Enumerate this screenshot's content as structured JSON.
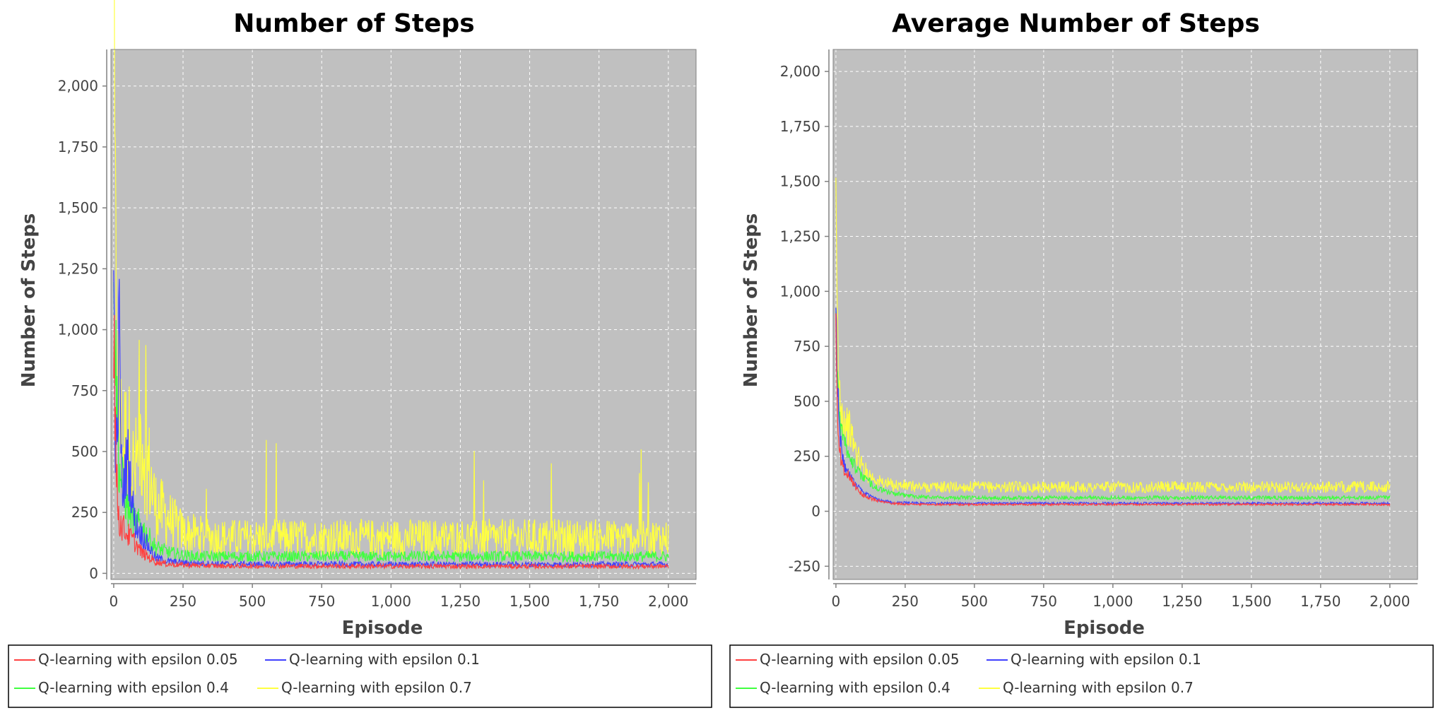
{
  "chart_data": [
    {
      "type": "line",
      "title": "Number of Steps",
      "xlabel": "Episode",
      "ylabel": "Number of Steps",
      "xlim": [
        -10,
        2100
      ],
      "ylim": [
        -25,
        2150
      ],
      "xticks": [
        0,
        250,
        500,
        750,
        1000,
        1250,
        1500,
        1750,
        2000
      ],
      "xtick_labels": [
        "0",
        "250",
        "500",
        "750",
        "1,000",
        "1,250",
        "1,500",
        "1,750",
        "2,000"
      ],
      "yticks": [
        0,
        250,
        500,
        750,
        1000,
        1250,
        1500,
        1750,
        2000
      ],
      "ytick_labels": [
        "0",
        "250",
        "500",
        "750",
        "1,000",
        "1,250",
        "1,500",
        "1,750",
        "2,000"
      ],
      "grid": true,
      "background": "#c0c0c0",
      "legend_position": "bottom",
      "series": [
        {
          "name": "Q-learning with epsilon 0.05",
          "color": "#ff4040",
          "x": [
            0,
            5,
            10,
            20,
            30,
            50,
            75,
            100,
            150,
            200,
            250,
            300,
            400,
            500,
            750,
            1000,
            1250,
            1500,
            1750,
            2000
          ],
          "y": [
            1100,
            600,
            350,
            200,
            180,
            150,
            120,
            80,
            45,
            35,
            32,
            30,
            28,
            28,
            28,
            27,
            27,
            27,
            27,
            27
          ]
        },
        {
          "name": "Q-learning with epsilon 0.1",
          "color": "#4040ff",
          "x": [
            0,
            5,
            10,
            20,
            30,
            50,
            75,
            100,
            150,
            200,
            250,
            300,
            400,
            500,
            750,
            1000,
            1250,
            1500,
            1750,
            2000
          ],
          "y": [
            1050,
            600,
            400,
            920,
            300,
            450,
            200,
            150,
            60,
            45,
            40,
            38,
            36,
            35,
            35,
            34,
            34,
            34,
            34,
            34
          ]
        },
        {
          "name": "Q-learning with epsilon 0.4",
          "color": "#40ff40",
          "x": [
            0,
            5,
            10,
            20,
            30,
            50,
            75,
            100,
            150,
            200,
            250,
            300,
            400,
            500,
            750,
            1000,
            1250,
            1500,
            1750,
            2000
          ],
          "y": [
            1500,
            900,
            700,
            400,
            350,
            250,
            200,
            180,
            100,
            80,
            70,
            65,
            65,
            65,
            65,
            65,
            65,
            65,
            65,
            65
          ]
        },
        {
          "name": "Q-learning with epsilon 0.7",
          "color": "#ffff40",
          "x": [
            0,
            5,
            10,
            20,
            30,
            50,
            75,
            100,
            150,
            200,
            250,
            300,
            400,
            500,
            750,
            1000,
            1250,
            1500,
            1750,
            2000
          ],
          "y": [
            2000,
            1200,
            800,
            600,
            450,
            500,
            350,
            520,
            250,
            200,
            150,
            140,
            130,
            130,
            130,
            130,
            130,
            130,
            130,
            130
          ]
        }
      ]
    },
    {
      "type": "line",
      "title": "Average Number of Steps",
      "xlabel": "Episode",
      "ylabel": "Number of Steps",
      "xlim": [
        -10,
        2100
      ],
      "ylim": [
        -310,
        2100
      ],
      "xticks": [
        0,
        250,
        500,
        750,
        1000,
        1250,
        1500,
        1750,
        2000
      ],
      "xtick_labels": [
        "0",
        "250",
        "500",
        "750",
        "1,000",
        "1,250",
        "1,500",
        "1,750",
        "2,000"
      ],
      "yticks": [
        -250,
        0,
        250,
        500,
        750,
        1000,
        1250,
        1500,
        1750,
        2000
      ],
      "ytick_labels": [
        "-250",
        "0",
        "250",
        "500",
        "750",
        "1,000",
        "1,250",
        "1,500",
        "1,750",
        "2,000"
      ],
      "grid": true,
      "background": "#c0c0c0",
      "legend_position": "bottom",
      "series": [
        {
          "name": "Q-learning with epsilon 0.05",
          "color": "#ff4040",
          "x": [
            0,
            5,
            10,
            20,
            30,
            50,
            75,
            100,
            150,
            200,
            250,
            300,
            400,
            500,
            750,
            1000,
            1250,
            1500,
            1750,
            2000
          ],
          "y": [
            800,
            500,
            300,
            220,
            180,
            150,
            100,
            70,
            45,
            35,
            32,
            30,
            30,
            30,
            30,
            30,
            30,
            30,
            30,
            30
          ]
        },
        {
          "name": "Q-learning with epsilon 0.1",
          "color": "#4040ff",
          "x": [
            0,
            5,
            10,
            20,
            30,
            50,
            75,
            100,
            150,
            200,
            250,
            300,
            400,
            500,
            750,
            1000,
            1250,
            1500,
            1750,
            2000
          ],
          "y": [
            920,
            600,
            400,
            280,
            200,
            160,
            110,
            80,
            50,
            40,
            38,
            36,
            35,
            35,
            35,
            35,
            35,
            35,
            35,
            35
          ]
        },
        {
          "name": "Q-learning with epsilon 0.4",
          "color": "#40ff40",
          "x": [
            0,
            5,
            10,
            20,
            30,
            50,
            75,
            100,
            150,
            200,
            250,
            300,
            400,
            500,
            750,
            1000,
            1250,
            1500,
            1750,
            2000
          ],
          "y": [
            900,
            650,
            450,
            350,
            300,
            250,
            180,
            150,
            100,
            80,
            70,
            65,
            60,
            60,
            60,
            60,
            60,
            60,
            60,
            60
          ]
        },
        {
          "name": "Q-learning with epsilon 0.7",
          "color": "#ffff40",
          "x": [
            0,
            5,
            10,
            20,
            30,
            50,
            75,
            100,
            150,
            200,
            250,
            300,
            400,
            500,
            750,
            1000,
            1250,
            1500,
            1750,
            2000
          ],
          "y": [
            1200,
            800,
            550,
            450,
            400,
            350,
            250,
            180,
            130,
            115,
            110,
            105,
            105,
            105,
            105,
            105,
            105,
            105,
            105,
            105
          ]
        }
      ]
    }
  ]
}
